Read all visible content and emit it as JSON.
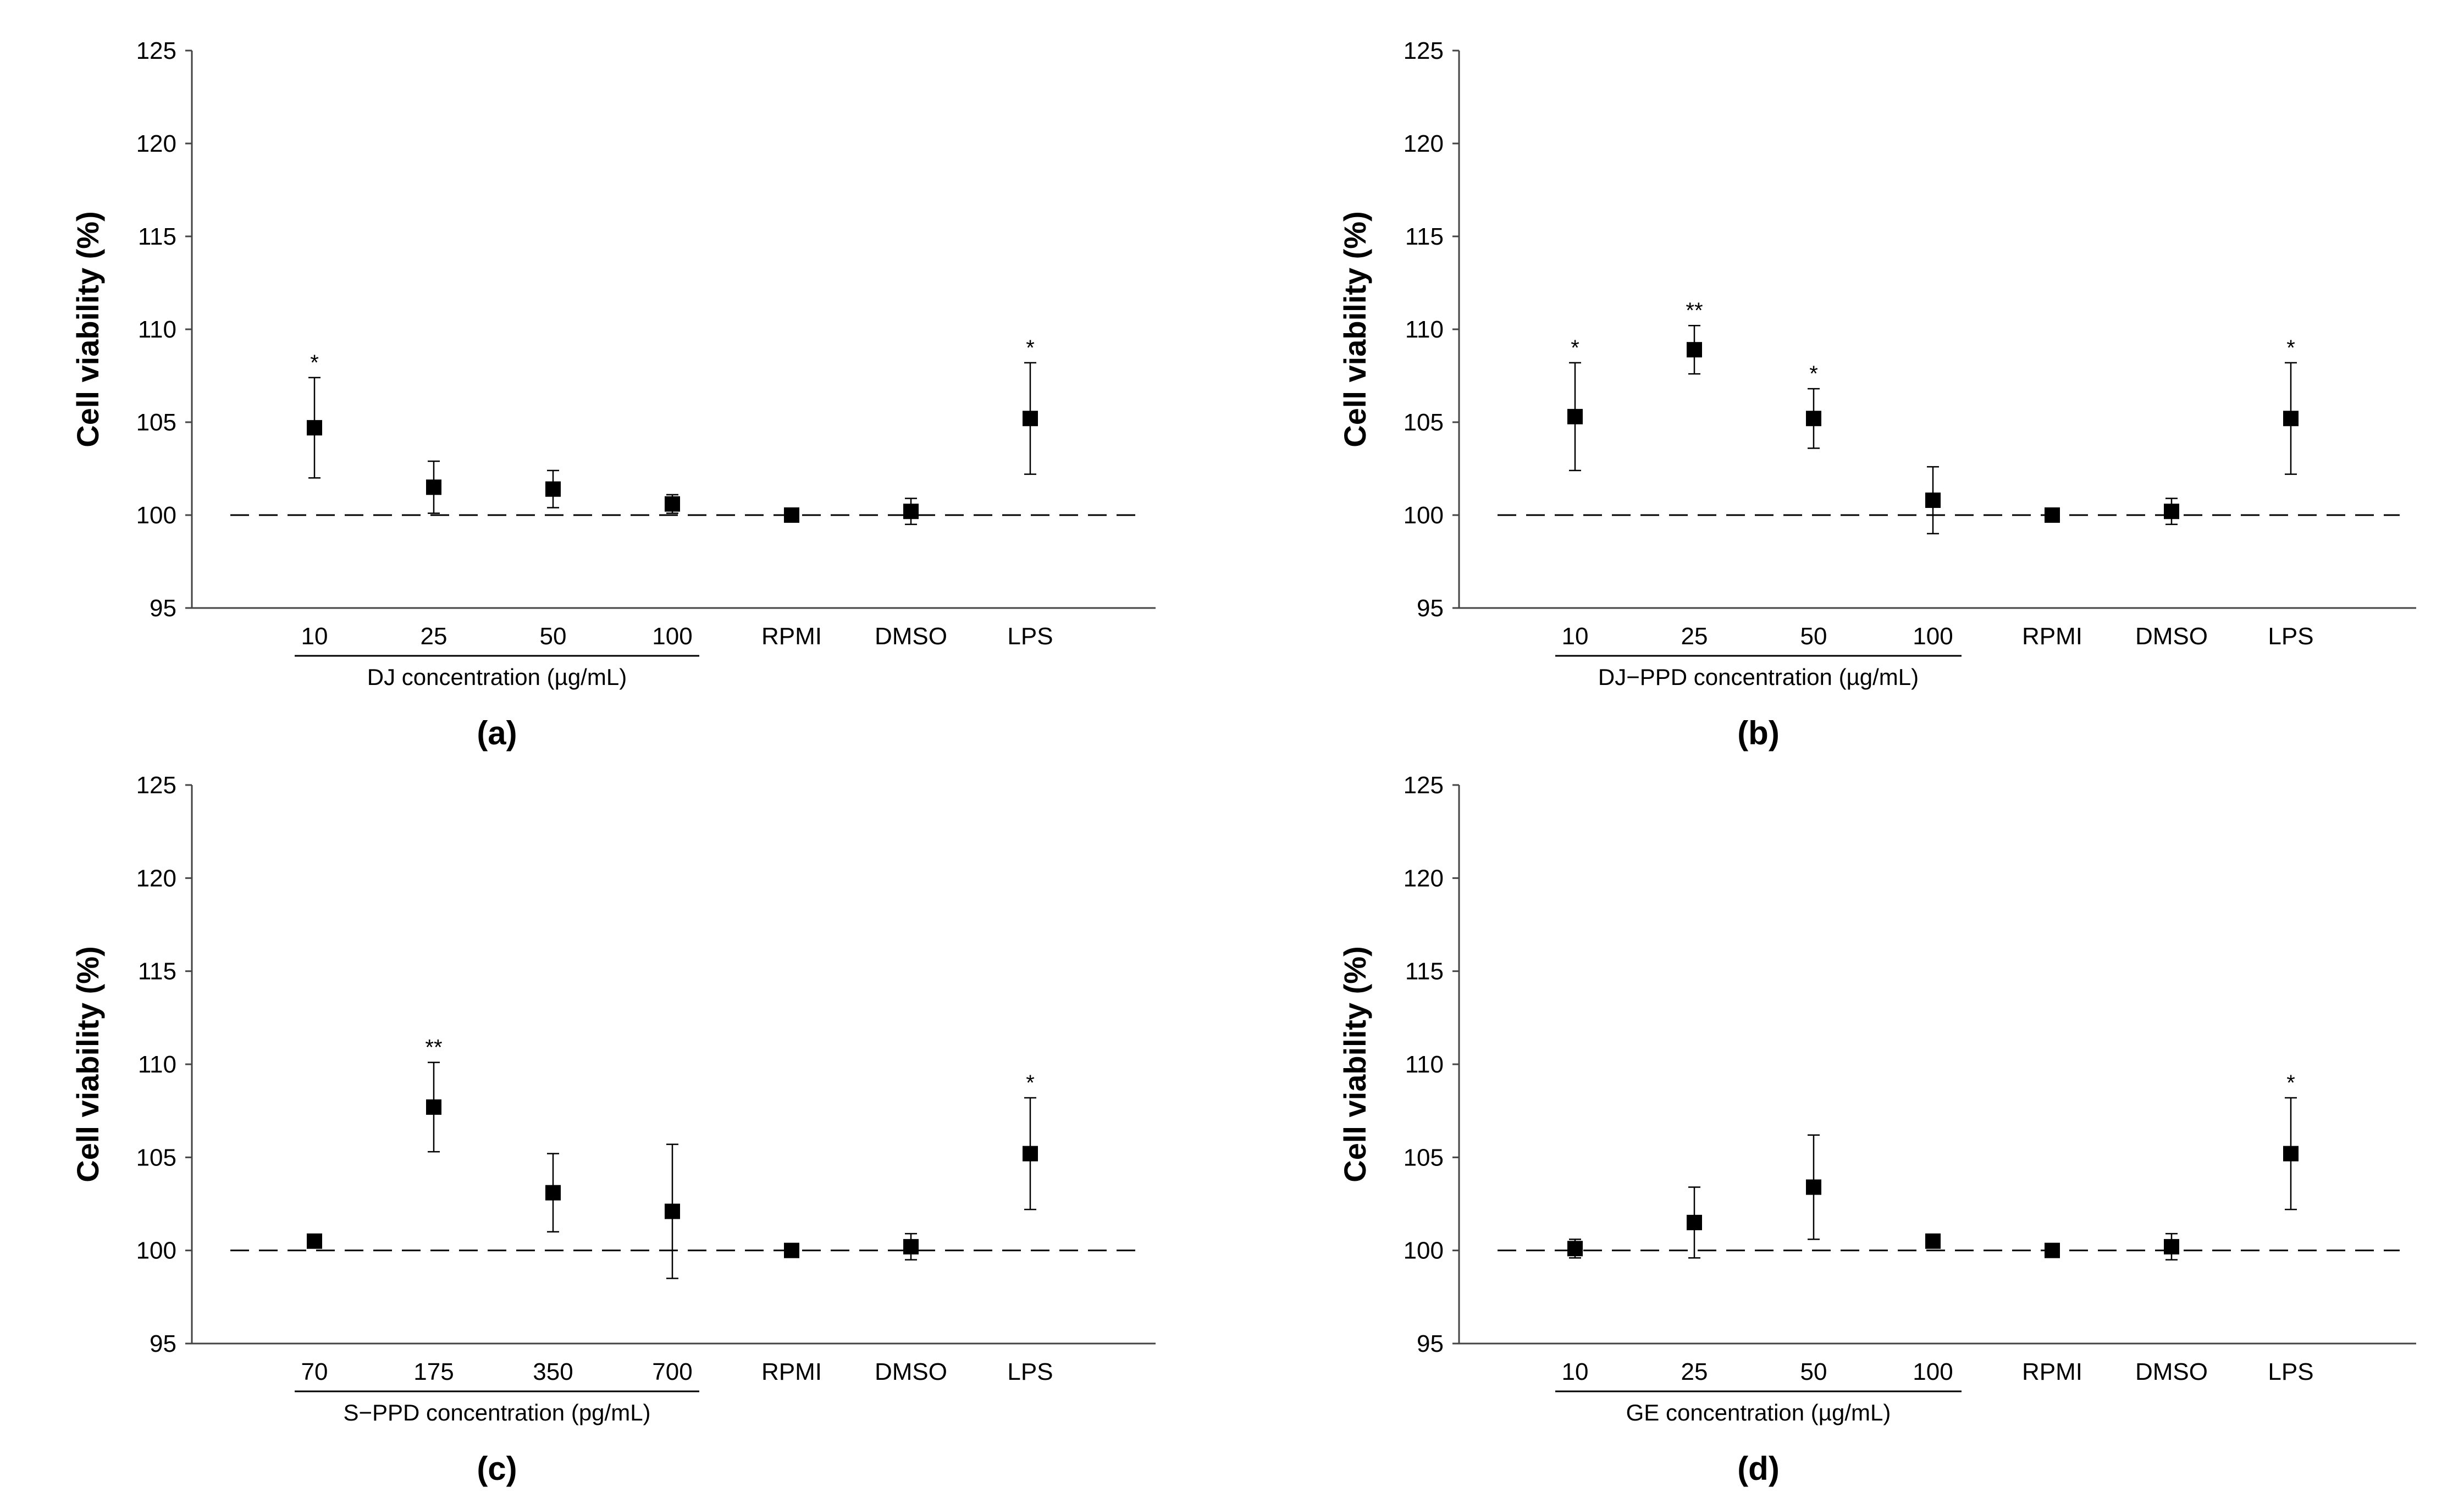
{
  "chart_data": [
    {
      "type": "scatter",
      "panel_label": "(a)",
      "ylabel": "Cell viability (%)",
      "ylim": [
        95,
        125
      ],
      "yticks": [
        "95",
        "100",
        "105",
        "110",
        "115",
        "120",
        "125"
      ],
      "categories": [
        "10",
        "25",
        "50",
        "100",
        "RPMI",
        "DMSO",
        "LPS"
      ],
      "group_label": "DJ concentration (µg/mL)",
      "values": [
        104.7,
        101.5,
        101.4,
        100.6,
        100.0,
        100.2,
        105.2
      ],
      "errors": [
        2.7,
        1.4,
        1.0,
        0.5,
        0.3,
        0.7,
        3.0
      ],
      "significance": [
        "*",
        "",
        "",
        "",
        "",
        "",
        "*"
      ],
      "reference_line": 100
    },
    {
      "type": "scatter",
      "panel_label": "(b)",
      "ylabel": "Cell viability (%)",
      "ylim": [
        95,
        125
      ],
      "yticks": [
        "95",
        "100",
        "105",
        "110",
        "115",
        "120",
        "125"
      ],
      "categories": [
        "10",
        "25",
        "50",
        "100",
        "RPMI",
        "DMSO",
        "LPS"
      ],
      "group_label": "DJ−PPD concentration (µg/mL)",
      "values": [
        105.3,
        108.9,
        105.2,
        100.8,
        100.0,
        100.2,
        105.2
      ],
      "errors": [
        2.9,
        1.3,
        1.6,
        1.8,
        0.3,
        0.7,
        3.0
      ],
      "significance": [
        "*",
        "**",
        "*",
        "",
        "",
        "",
        "*"
      ],
      "reference_line": 100
    },
    {
      "type": "scatter",
      "panel_label": "(c)",
      "ylabel": "Cell viability (%)",
      "ylim": [
        95,
        125
      ],
      "yticks": [
        "95",
        "100",
        "105",
        "110",
        "115",
        "120",
        "125"
      ],
      "categories": [
        "70",
        "175",
        "350",
        "700",
        "RPMI",
        "DMSO",
        "LPS"
      ],
      "group_label": "S−PPD concentration (pg/mL)",
      "values": [
        100.5,
        107.7,
        103.1,
        102.1,
        100.0,
        100.2,
        105.2
      ],
      "errors": [
        0,
        2.4,
        2.1,
        3.6,
        0.3,
        0.7,
        3.0
      ],
      "significance": [
        "",
        "**",
        "",
        "",
        "",
        "",
        "*"
      ],
      "reference_line": 100
    },
    {
      "type": "scatter",
      "panel_label": "(d)",
      "ylabel": "Cell viability (%)",
      "ylim": [
        95,
        125
      ],
      "yticks": [
        "95",
        "100",
        "105",
        "110",
        "115",
        "120",
        "125"
      ],
      "categories": [
        "10",
        "25",
        "50",
        "100",
        "RPMI",
        "DMSO",
        "LPS"
      ],
      "group_label": "GE concentration (µg/mL)",
      "values": [
        100.1,
        101.5,
        103.4,
        100.5,
        100.0,
        100.2,
        105.2
      ],
      "errors": [
        0.5,
        1.9,
        2.8,
        0,
        0.3,
        0.7,
        3.0
      ],
      "significance": [
        "",
        "",
        "",
        "",
        "",
        "",
        "*"
      ],
      "reference_line": 100
    }
  ]
}
